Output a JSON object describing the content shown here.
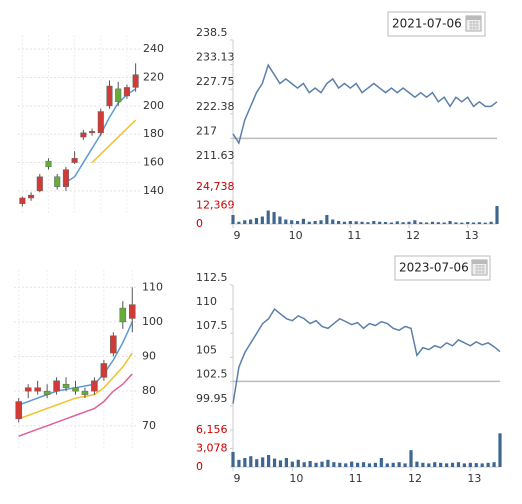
{
  "chart_data": [
    {
      "type": "candlestick",
      "up_color": "#d23a36",
      "down_color": "#63ad3a",
      "grid": true,
      "ylim": [
        123,
        250
      ],
      "yticks": [
        140,
        160,
        180,
        200,
        220,
        240
      ],
      "open": [
        131,
        135,
        140,
        161,
        150,
        143,
        160,
        178,
        181,
        181,
        200,
        212,
        207,
        213
      ],
      "high": [
        136,
        139,
        152,
        163,
        152,
        157,
        168,
        183,
        184,
        198,
        218,
        217,
        215,
        230
      ],
      "low": [
        129,
        133,
        139,
        155,
        141,
        140,
        159,
        176,
        179,
        179,
        198,
        200,
        205,
        210
      ],
      "close": [
        135,
        137,
        150,
        157,
        143,
        155,
        163,
        181,
        182,
        196,
        214,
        203,
        213,
        222
      ],
      "ma": [
        {
          "color": "#5b9bd5",
          "values": [
            null,
            null,
            null,
            null,
            null,
            146,
            150,
            160,
            170,
            180,
            192,
            202,
            208,
            212
          ]
        },
        {
          "color": "#f2c12e",
          "values": [
            null,
            null,
            null,
            null,
            null,
            null,
            null,
            null,
            160,
            166,
            172,
            178,
            184,
            190
          ]
        }
      ]
    },
    {
      "type": "line",
      "date": "2021-07-06",
      "color": "#5b80aa",
      "x": [
        9,
        9.1,
        9.2,
        9.3,
        9.4,
        9.5,
        9.6,
        9.7,
        9.8,
        9.9,
        10,
        10.1,
        10.2,
        10.3,
        10.4,
        10.5,
        10.6,
        10.7,
        10.8,
        10.9,
        11,
        11.1,
        11.2,
        11.3,
        11.4,
        11.5,
        11.6,
        11.7,
        11.8,
        11.9,
        12,
        12.1,
        12.2,
        12.3,
        12.4,
        12.5,
        12.6,
        12.7,
        12.8,
        12.9,
        13,
        13.1,
        13.2,
        13.3,
        13.4,
        13.5
      ],
      "xlim": [
        9,
        13.5
      ],
      "xticks": [
        9,
        10,
        11,
        12,
        13
      ],
      "values": [
        218,
        216,
        221,
        224,
        227,
        229,
        233,
        231,
        229,
        230,
        229,
        228,
        229,
        227,
        228,
        227,
        229,
        230,
        228,
        229,
        228,
        229,
        227,
        228,
        229,
        228,
        227,
        228,
        227,
        228,
        227,
        226,
        227,
        226,
        227,
        225,
        226,
        224,
        226,
        225,
        226,
        224,
        225,
        224,
        224,
        225
      ],
      "ylim": [
        211.63,
        238.5
      ],
      "yticks": [
        238.5,
        233.13,
        227.75,
        222.38,
        217,
        211.63
      ],
      "reference_line": 217,
      "volume": {
        "color": "#3d6690",
        "label_color": "#cc0000",
        "ylim": [
          0,
          24738
        ],
        "yticks": [
          {
            "value": 24738,
            "label": "24,738"
          },
          {
            "value": 12369,
            "label": "12,369"
          },
          0
        ],
        "values": [
          6000,
          1500,
          2500,
          3000,
          4000,
          5000,
          9000,
          8000,
          5000,
          3000,
          2500,
          2000,
          3500,
          1500,
          2000,
          2500,
          6000,
          3000,
          2000,
          1500,
          2000,
          1800,
          1500,
          1200,
          2000,
          1500,
          1300,
          1000,
          1800,
          1200,
          1500,
          2500,
          1200,
          1000,
          1500,
          1200,
          1000,
          2000,
          1100,
          900,
          1300,
          1000,
          1200,
          900,
          1500,
          12000
        ]
      }
    },
    {
      "type": "candlestick",
      "up_color": "#d23a36",
      "down_color": "#63ad3a",
      "grid": true,
      "ylim": [
        63,
        115
      ],
      "yticks": [
        70,
        80,
        90,
        100,
        110
      ],
      "open": [
        72,
        80,
        80,
        80,
        80,
        82,
        81,
        80,
        80,
        84,
        91,
        104,
        101
      ],
      "high": [
        78,
        82,
        83,
        82,
        84,
        84,
        83,
        81,
        84,
        89,
        97,
        106,
        110
      ],
      "low": [
        71,
        78,
        79,
        78,
        79,
        80,
        79,
        78,
        79,
        83,
        90,
        98,
        97
      ],
      "close": [
        77,
        81,
        81,
        79,
        83,
        81,
        80,
        79,
        83,
        88,
        96,
        100,
        105
      ],
      "ma": [
        {
          "color": "#5b9bd5",
          "values": [
            76,
            77,
            78,
            79,
            80,
            80.5,
            81,
            81.5,
            82,
            85,
            89,
            94,
            100
          ]
        },
        {
          "color": "#f2c12e",
          "values": [
            72,
            73,
            74,
            75,
            76,
            77,
            78,
            78.5,
            79,
            81,
            84,
            87,
            91
          ]
        },
        {
          "color": "#e0609a",
          "values": [
            67,
            68,
            69,
            70,
            71,
            72,
            73,
            74,
            75,
            77,
            80,
            82,
            85
          ]
        }
      ]
    },
    {
      "type": "line",
      "date": "2023-07-06",
      "color": "#5b80aa",
      "x": [
        9,
        9.1,
        9.2,
        9.3,
        9.4,
        9.5,
        9.6,
        9.7,
        9.8,
        9.9,
        10,
        10.1,
        10.2,
        10.3,
        10.4,
        10.5,
        10.6,
        10.7,
        10.8,
        10.9,
        11,
        11.1,
        11.2,
        11.3,
        11.4,
        11.5,
        11.6,
        11.7,
        11.8,
        11.9,
        12,
        12.1,
        12.2,
        12.3,
        12.4,
        12.5,
        12.6,
        12.7,
        12.8,
        12.9,
        13,
        13.1,
        13.2,
        13.3,
        13.4,
        13.5
      ],
      "xlim": [
        9,
        13.5
      ],
      "xticks": [
        9,
        10,
        11,
        12,
        13
      ],
      "values": [
        100.2,
        104,
        105.5,
        106.5,
        107.5,
        108.5,
        109,
        110,
        109.5,
        109,
        108.8,
        109.3,
        109,
        108.5,
        108.8,
        108.2,
        108,
        108.5,
        109,
        108.7,
        108.4,
        108.6,
        108,
        108.5,
        108.3,
        108.7,
        108.5,
        108,
        107.8,
        108.2,
        108,
        105.2,
        106,
        105.8,
        106.2,
        106,
        106.5,
        106.2,
        106.8,
        106.5,
        106.2,
        106.6,
        106.3,
        106.5,
        106.1,
        105.6
      ],
      "ylim": [
        99.95,
        112.5
      ],
      "yticks": [
        112.5,
        110,
        107.5,
        105,
        102.5,
        99.95
      ],
      "reference_line": 102.5,
      "volume": {
        "color": "#3d6690",
        "label_color": "#cc0000",
        "ylim": [
          0,
          6156
        ],
        "yticks": [
          {
            "value": 6156,
            "label": "6,156"
          },
          {
            "value": 3078,
            "label": "3,078"
          },
          0
        ],
        "values": [
          2500,
          1200,
          1500,
          1800,
          1300,
          1600,
          2000,
          1400,
          1100,
          1500,
          900,
          1200,
          800,
          1000,
          700,
          900,
          1200,
          800,
          700,
          600,
          900,
          700,
          800,
          600,
          700,
          1500,
          600,
          700,
          800,
          600,
          2800,
          900,
          700,
          600,
          800,
          700,
          600,
          700,
          800,
          600,
          700,
          650,
          600,
          700,
          800,
          5600
        ]
      }
    }
  ]
}
